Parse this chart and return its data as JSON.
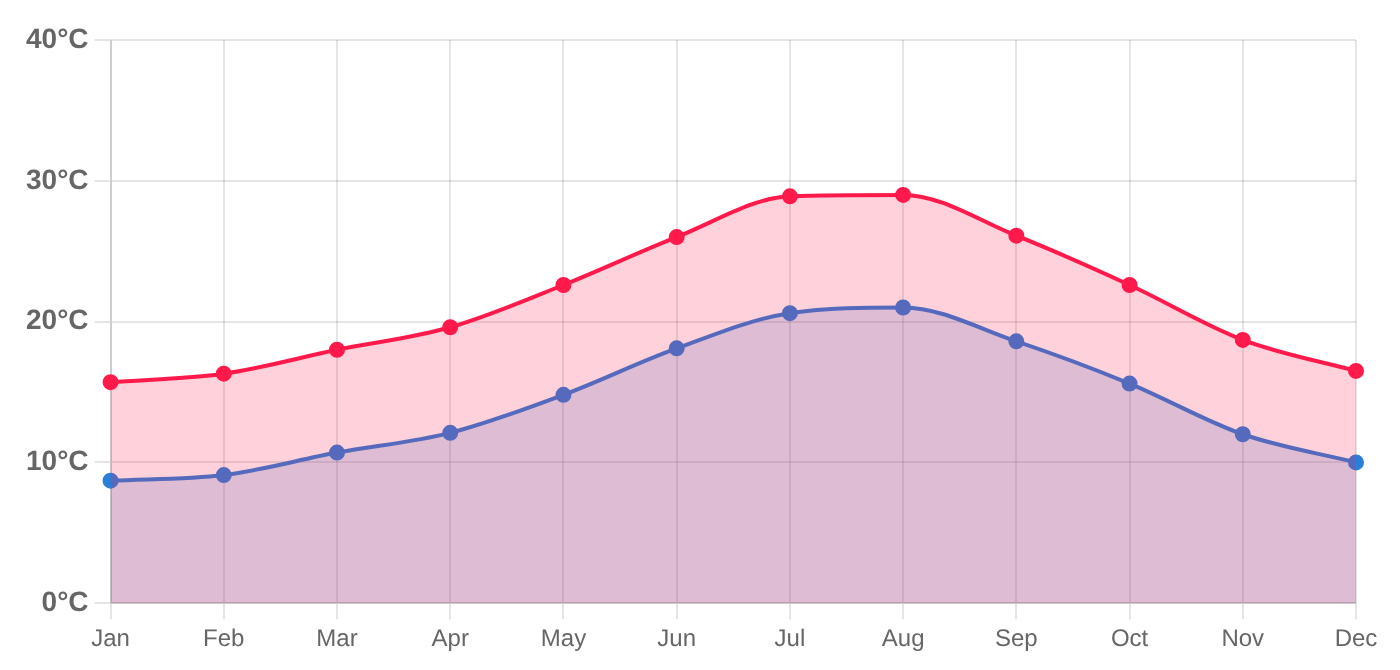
{
  "chart_data": {
    "type": "area",
    "categories": [
      "Jan",
      "Feb",
      "Mar",
      "Apr",
      "May",
      "Jun",
      "Jul",
      "Aug",
      "Sep",
      "Oct",
      "Nov",
      "Dec"
    ],
    "series": [
      {
        "color": "#ff1a4b",
        "values": [
          15.7,
          16.3,
          18.0,
          19.6,
          22.6,
          26.0,
          28.9,
          29.0,
          26.1,
          22.6,
          18.7,
          16.5
        ]
      },
      {
        "color": "#2b7fd9",
        "values": [
          8.7,
          9.1,
          10.7,
          12.1,
          14.8,
          18.1,
          20.6,
          21.0,
          18.6,
          15.6,
          12.0,
          10.0
        ]
      }
    ],
    "ylim": [
      0,
      40
    ],
    "yticks": [
      {
        "value": 0,
        "label": "0°C"
      },
      {
        "value": 10,
        "label": "10°C"
      },
      {
        "value": 20,
        "label": "20°C"
      },
      {
        "value": 30,
        "label": "30°C"
      },
      {
        "value": 40,
        "label": "40°C"
      }
    ],
    "grid": true,
    "marker": "circle",
    "legend": false
  }
}
